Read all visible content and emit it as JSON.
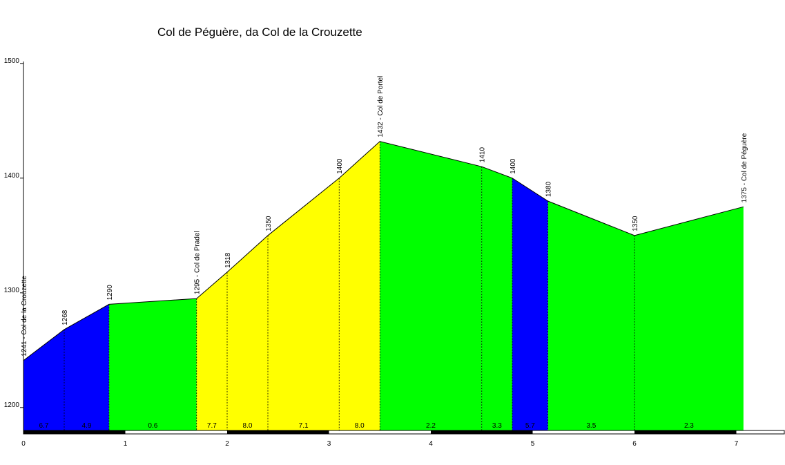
{
  "chart_data": {
    "type": "area",
    "title": "Col de Péguère, da Col de la Crouzette",
    "xlabel": "",
    "ylabel": "",
    "xlim": [
      0,
      7.5
    ],
    "ylim": [
      1180,
      1500
    ],
    "x_ticks": [
      "0",
      "1",
      "2",
      "3",
      "4",
      "5",
      "6",
      "7"
    ],
    "y_ticks": [
      "1200",
      "1300",
      "1400",
      "1500"
    ],
    "points": [
      {
        "x": 0.0,
        "y": 1241,
        "label": "1241 - Col de la Crouzette"
      },
      {
        "x": 0.4,
        "y": 1268,
        "label": "1268"
      },
      {
        "x": 0.84,
        "y": 1290,
        "label": "1290"
      },
      {
        "x": 1.7,
        "y": 1295,
        "label": "1295 - Col de Pradel"
      },
      {
        "x": 2.0,
        "y": 1318,
        "label": "1318"
      },
      {
        "x": 2.4,
        "y": 1350,
        "label": "1350"
      },
      {
        "x": 3.1,
        "y": 1400,
        "label": "1400"
      },
      {
        "x": 3.5,
        "y": 1432,
        "label": "1432 - Col de Portel"
      },
      {
        "x": 4.5,
        "y": 1410,
        "label": "1410"
      },
      {
        "x": 4.8,
        "y": 1400,
        "label": "1400"
      },
      {
        "x": 5.15,
        "y": 1380,
        "label": "1380"
      },
      {
        "x": 6.0,
        "y": 1350,
        "label": "1350"
      },
      {
        "x": 7.07,
        "y": 1375,
        "label": "1375 - Col de Péguère"
      }
    ],
    "segments": [
      {
        "gradient": "6.7",
        "color": "#0000ff"
      },
      {
        "gradient": "4.9",
        "color": "#0000ff"
      },
      {
        "gradient": "0.6",
        "color": "#00ff00"
      },
      {
        "gradient": "7.7",
        "color": "#ffff00"
      },
      {
        "gradient": "8.0",
        "color": "#ffff00"
      },
      {
        "gradient": "7.1",
        "color": "#ffff00"
      },
      {
        "gradient": "8.0",
        "color": "#ffff00"
      },
      {
        "gradient": "2.2",
        "color": "#00ff00"
      },
      {
        "gradient": "3.3",
        "color": "#00ff00"
      },
      {
        "gradient": "5.7",
        "color": "#0000ff"
      },
      {
        "gradient": "3.5",
        "color": "#00ff00"
      },
      {
        "gradient": "2.3",
        "color": "#00ff00"
      }
    ],
    "grid": false,
    "legend": "none"
  }
}
